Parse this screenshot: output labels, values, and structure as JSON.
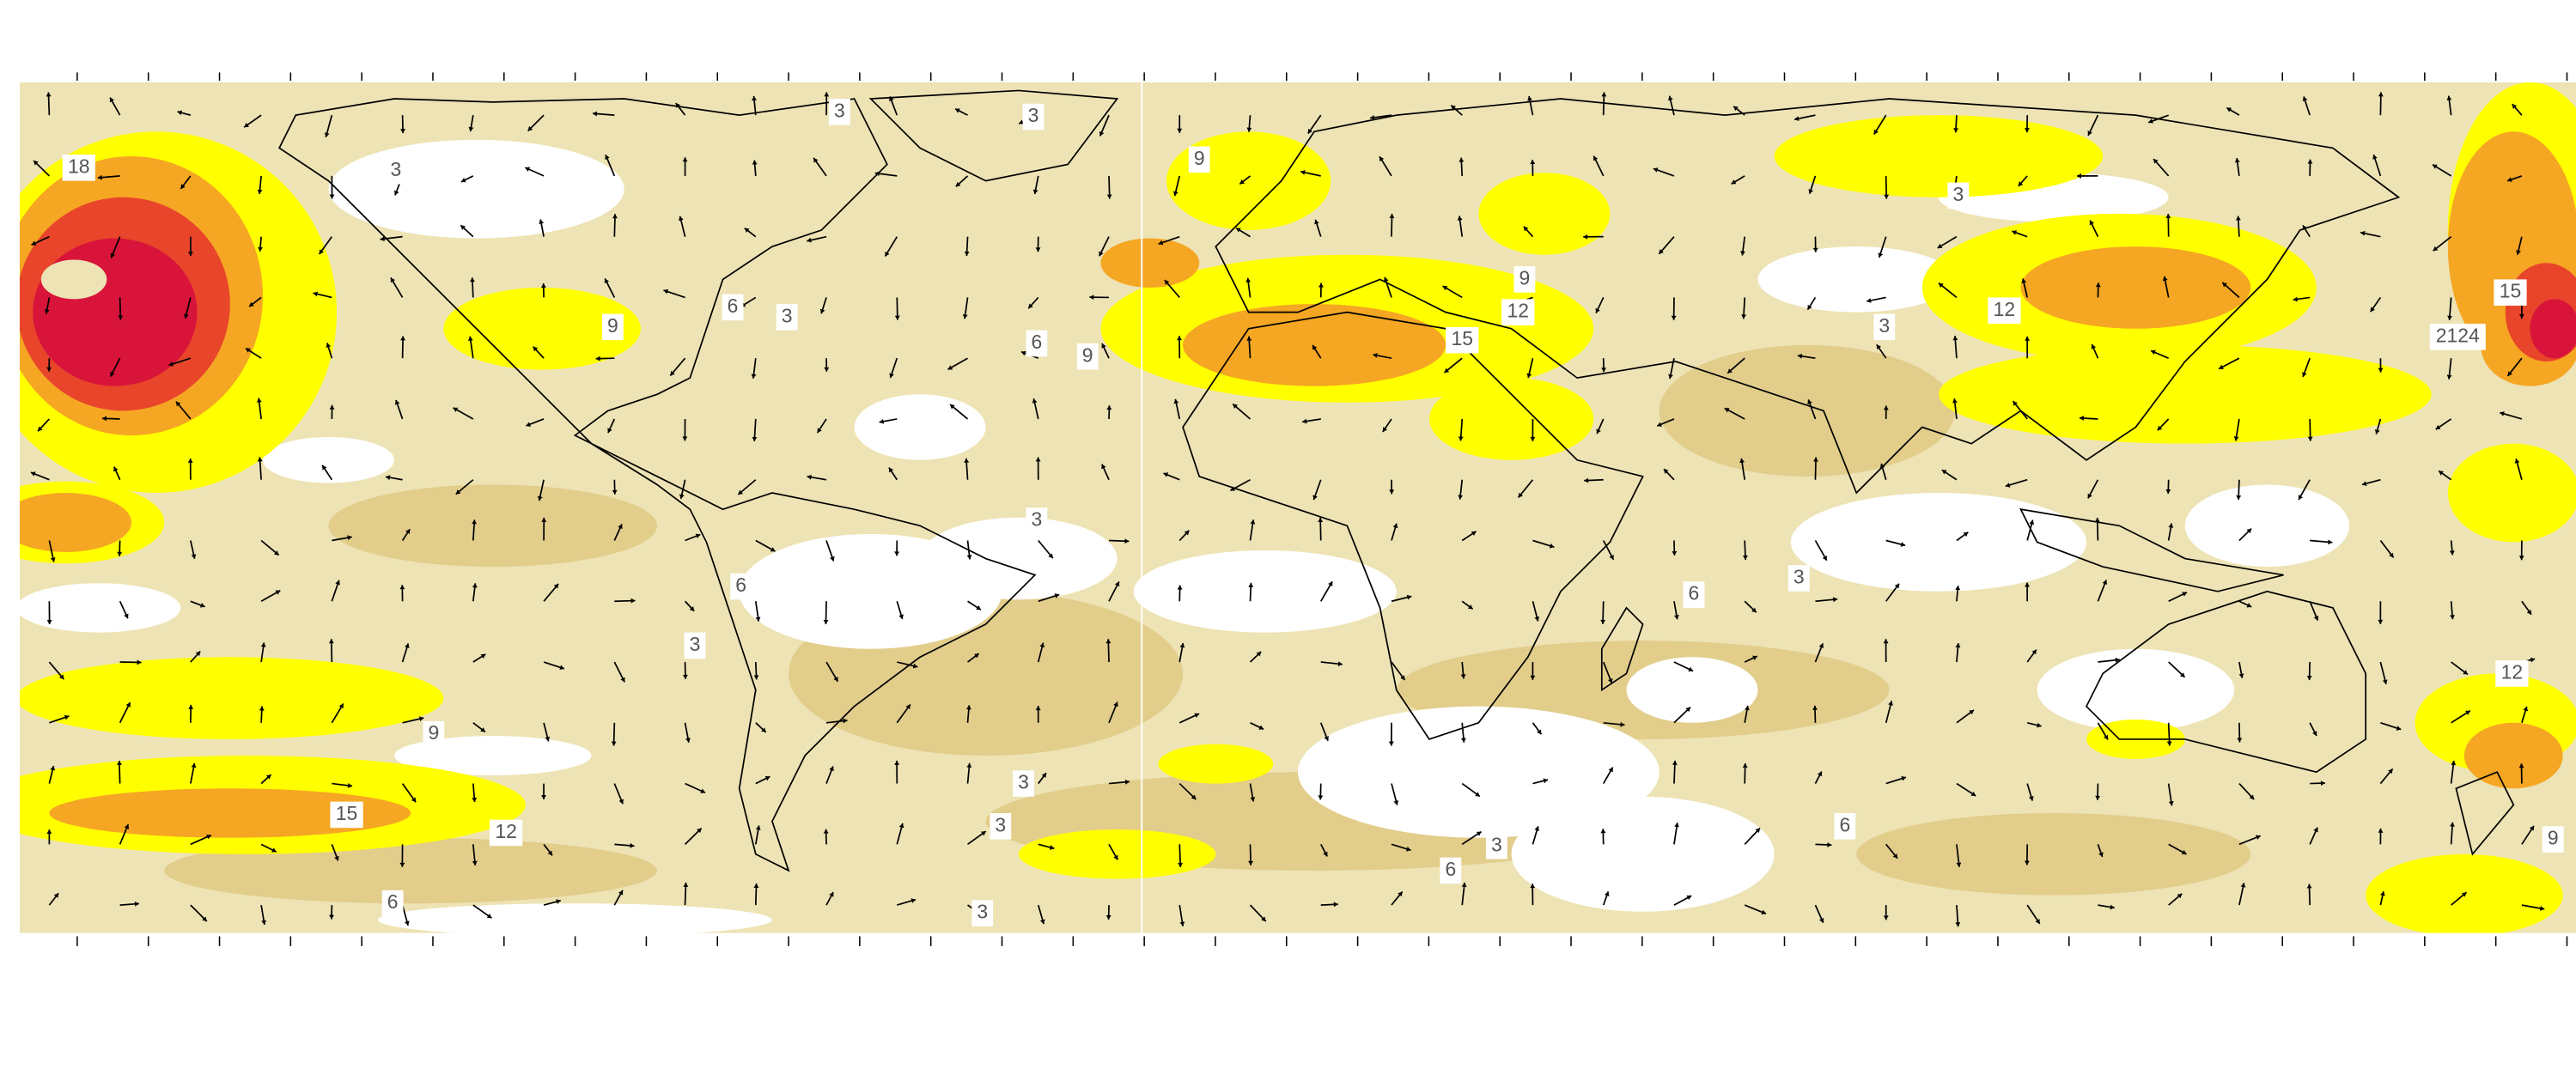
{
  "map": {
    "contour_labels": [
      "18",
      "3",
      "3",
      "3",
      "9",
      "6",
      "3",
      "9",
      "6",
      "9",
      "15",
      "12",
      "9",
      "3",
      "12",
      "3",
      "15",
      "2124",
      "3",
      "6",
      "6",
      "3",
      "3",
      "12",
      "9",
      "3",
      "15",
      "12",
      "3",
      "6",
      "3",
      "6",
      "9",
      "6",
      "3"
    ]
  }
}
